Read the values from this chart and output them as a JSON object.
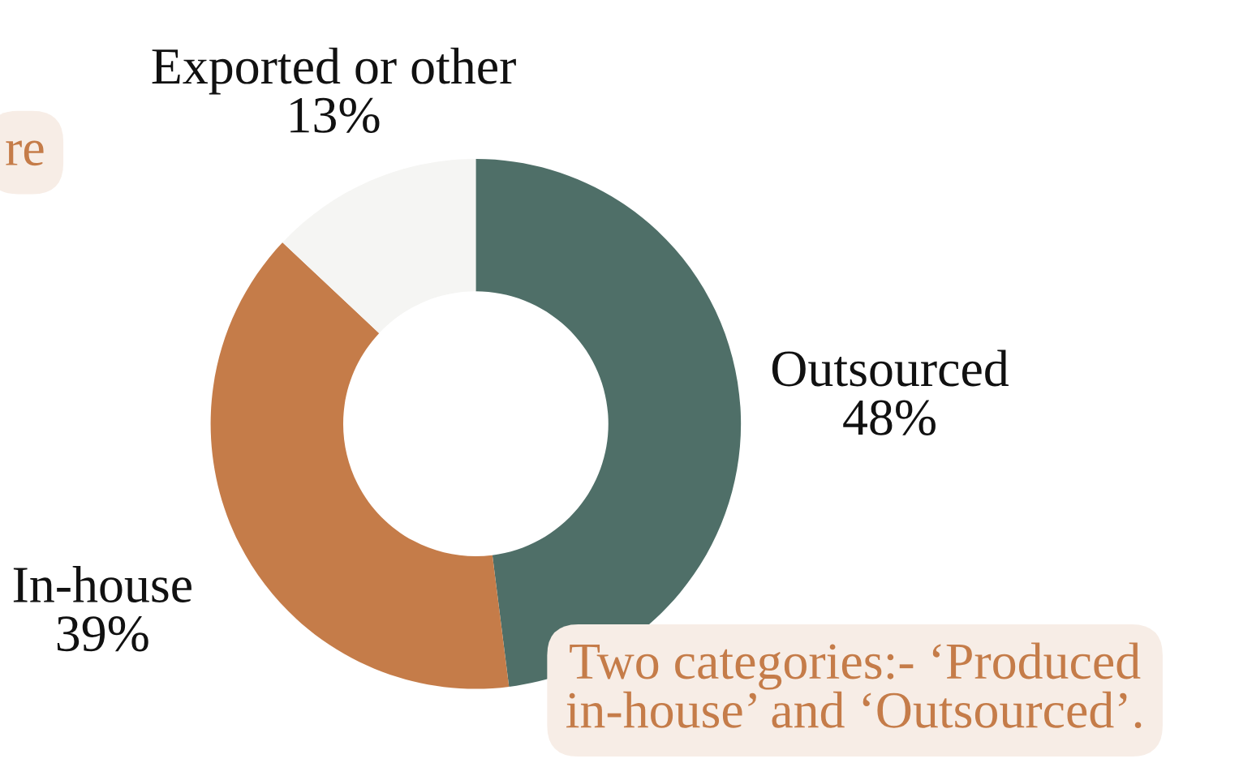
{
  "chart_data": {
    "type": "donut",
    "categories": [
      "Outsourced",
      "In-house",
      "Exported or other"
    ],
    "values": [
      48,
      39,
      13
    ],
    "colors": [
      "#4f6f68",
      "#c57c49",
      "#f5f5f3"
    ],
    "value_labels": [
      "48%",
      "39%",
      "13%"
    ],
    "annotations": [
      "re",
      "Two categories:- ‘Produced in-house’ and ‘Outsourced’."
    ]
  }
}
